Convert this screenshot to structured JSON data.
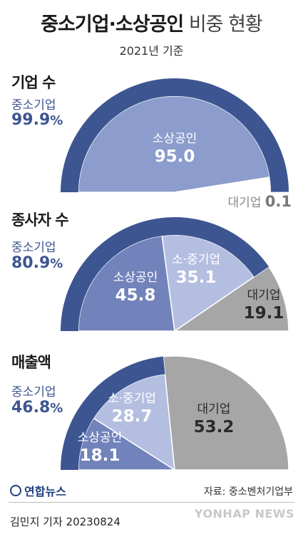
{
  "header": {
    "title_bold": "중소기업·소상공인",
    "title_light": "비중 현황",
    "subtitle": "2021년 기준"
  },
  "sections": [
    {
      "title": "기업 수",
      "share_label": "중소기업",
      "share_value": "99.9",
      "share_unit": "%"
    },
    {
      "title": "종사자 수",
      "share_label": "중소기업",
      "share_value": "80.9",
      "share_unit": "%"
    },
    {
      "title": "매출액",
      "share_label": "중소기업",
      "share_value": "46.8",
      "share_unit": "%"
    }
  ],
  "chart_data": [
    {
      "type": "pie",
      "title": "기업 수",
      "categories": [
        "소상공인",
        "대기업"
      ],
      "values": [
        95.0,
        0.1
      ],
      "labels": [
        "95.0",
        "0.1"
      ],
      "outer_ring": {
        "label": "중소기업",
        "value": 99.9
      },
      "colors": {
        "ring": "#3d5591",
        "소상공인": "#8c9ccc",
        "소·중기업": "#b4bee0",
        "대기업": "#a6a6a6"
      }
    },
    {
      "type": "pie",
      "title": "종사자 수",
      "categories": [
        "소상공인",
        "소·중기업",
        "대기업"
      ],
      "values": [
        45.8,
        35.1,
        19.1
      ],
      "labels": [
        "45.8",
        "35.1",
        "19.1"
      ],
      "outer_ring": {
        "label": "중소기업",
        "value": 80.9
      },
      "colors": {
        "ring": "#3d5591",
        "소상공인": "#7283bb",
        "소·중기업": "#b4bee0",
        "대기업": "#a6a6a6"
      }
    },
    {
      "type": "pie",
      "title": "매출액",
      "categories": [
        "소상공인",
        "소·중기업",
        "대기업"
      ],
      "values": [
        18.1,
        28.7,
        53.2
      ],
      "labels": [
        "18.1",
        "28.7",
        "53.2"
      ],
      "outer_ring": {
        "label": "중소기업",
        "value": 46.8
      },
      "colors": {
        "ring": "#3d5591",
        "소상공인": "#7283bb",
        "소·중기업": "#b4bee0",
        "대기업": "#a6a6a6"
      }
    }
  ],
  "footer": {
    "logo": "연합뉴스",
    "source": "자료: 중소벤처기업부",
    "credit": "김민지 기자  20230824",
    "watermark": "YONHAP NEWS"
  }
}
